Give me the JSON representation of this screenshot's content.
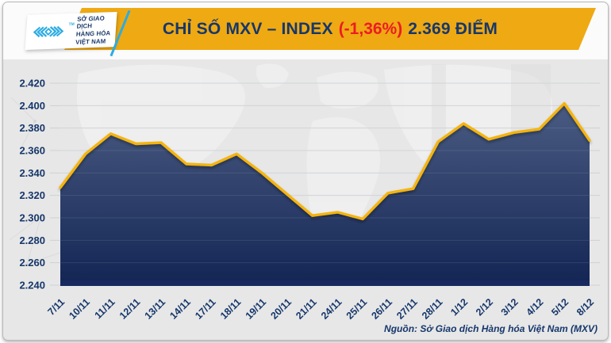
{
  "header": {
    "logo": {
      "org_lines": [
        "SỞ GIAO DỊCH",
        "HÀNG HÓA",
        "VIỆT NAM"
      ],
      "trademark": "TM"
    },
    "title": {
      "prefix": "CHỈ SỐ MXV – INDEX",
      "change": "(-1,36%)",
      "suffix": "2.369 ĐIỂM"
    }
  },
  "footer": {
    "source": "Nguồn: Sở Giao dịch Hàng hóa Việt Nam (MXV)"
  },
  "colors": {
    "banner_gold": "#EFA912",
    "line_gold": "#F5B40F",
    "navy_text": "#16376B",
    "red_change": "#EC1C24",
    "logo_cyan": "#2BACE2",
    "area_fill_top": "#4A5C82",
    "area_fill_bottom": "#132554",
    "baseline_navy": "#17295E",
    "gridline": "#CDD0D4",
    "chart_bg": "#E7E7E7"
  },
  "chart_data": {
    "type": "area",
    "title": "CHỈ SỐ MXV – INDEX (-1,36%) 2.369 ĐIỂM",
    "x": [
      "7/11",
      "10/11",
      "11/11",
      "12/11",
      "13/11",
      "14/11",
      "17/11",
      "18/11",
      "19/11",
      "20/11",
      "21/11",
      "24/11",
      "25/11",
      "26/11",
      "27/11",
      "28/11",
      "1/12",
      "2/12",
      "3/12",
      "4/12",
      "5/12",
      "8/12"
    ],
    "values": [
      2327,
      2357,
      2375,
      2366,
      2367,
      2348,
      2347,
      2357,
      2340,
      2321,
      2302,
      2305,
      2299,
      2322,
      2326,
      2368,
      2384,
      2370,
      2376,
      2379,
      2402,
      2369
    ],
    "ylim": [
      2240,
      2420
    ],
    "ytick_step": 20,
    "ytick_labels": [
      "2.240",
      "2.260",
      "2.280",
      "2.300",
      "2.320",
      "2.340",
      "2.360",
      "2.380",
      "2.400",
      "2.420"
    ],
    "xlabel": "",
    "ylabel": "",
    "grid": true,
    "legend_position": "none",
    "unit": "điểm",
    "latest_value_label": "2.369",
    "latest_change_pct": "-1,36%"
  }
}
